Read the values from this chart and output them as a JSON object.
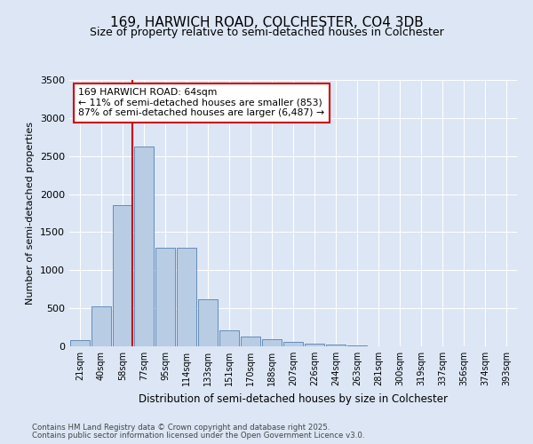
{
  "title1": "169, HARWICH ROAD, COLCHESTER, CO4 3DB",
  "title2": "Size of property relative to semi-detached houses in Colchester",
  "xlabel": "Distribution of semi-detached houses by size in Colchester",
  "ylabel": "Number of semi-detached properties",
  "categories": [
    "21sqm",
    "40sqm",
    "58sqm",
    "77sqm",
    "95sqm",
    "114sqm",
    "133sqm",
    "151sqm",
    "170sqm",
    "188sqm",
    "207sqm",
    "226sqm",
    "244sqm",
    "263sqm",
    "281sqm",
    "300sqm",
    "319sqm",
    "337sqm",
    "356sqm",
    "374sqm",
    "393sqm"
  ],
  "values": [
    80,
    520,
    1850,
    2620,
    1300,
    1300,
    620,
    210,
    130,
    90,
    60,
    35,
    20,
    10,
    5,
    3,
    2,
    1,
    1,
    1,
    1
  ],
  "bar_color": "#b8cce4",
  "bar_edge_color": "#5580b0",
  "vline_color": "#cc0000",
  "box_edge_color": "#cc0000",
  "annotation_text": "169 HARWICH ROAD: 64sqm\n← 11% of semi-detached houses are smaller (853)\n87% of semi-detached houses are larger (6,487) →",
  "ylim": [
    0,
    3500
  ],
  "yticks": [
    0,
    500,
    1000,
    1500,
    2000,
    2500,
    3000,
    3500
  ],
  "vline_x": 2.45,
  "footer1": "Contains HM Land Registry data © Crown copyright and database right 2025.",
  "footer2": "Contains public sector information licensed under the Open Government Licence v3.0.",
  "bg_color": "#dce6f5",
  "title_fontsize": 11,
  "subtitle_fontsize": 9
}
